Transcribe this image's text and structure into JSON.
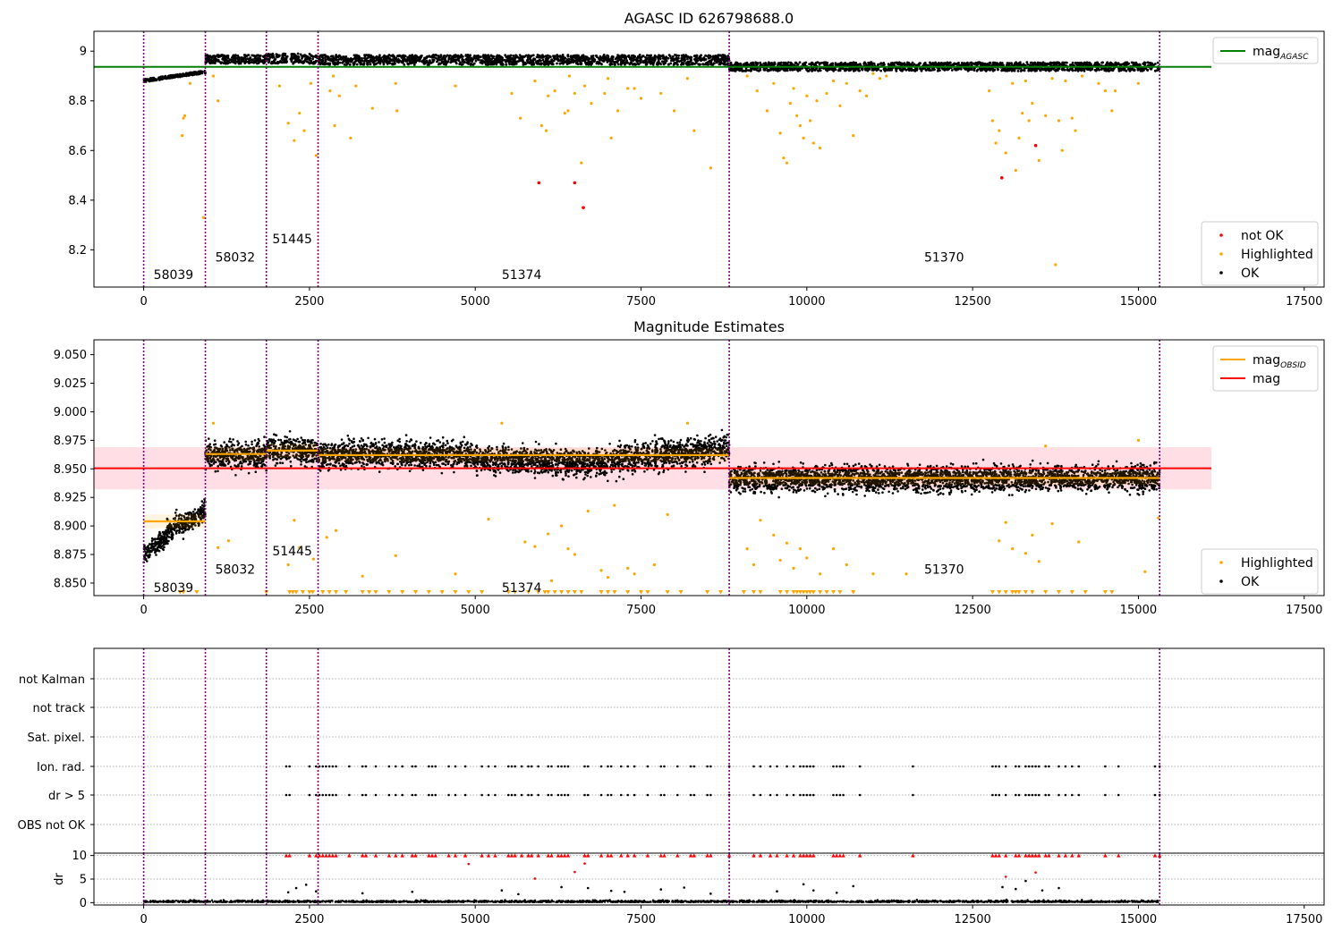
{
  "chart_data": [
    {
      "id": "top",
      "type": "scatter",
      "title": "AGASC ID 626798688.0",
      "xlim": [
        -750,
        17800
      ],
      "ylim": [
        8.05,
        9.08
      ],
      "xticks": [
        0,
        2500,
        5000,
        7500,
        10000,
        12500,
        15000,
        17500
      ],
      "yticks": [
        8.2,
        8.4,
        8.6,
        8.8,
        9.0
      ],
      "obs_boundaries": [
        0,
        930,
        1850,
        2630,
        8830,
        15320
      ],
      "obs_labels": [
        {
          "text": "58039",
          "x": 450,
          "y": 8.1
        },
        {
          "text": "58032",
          "x": 1380,
          "y": 8.17
        },
        {
          "text": "51445",
          "x": 2240,
          "y": 8.245
        },
        {
          "text": "51374",
          "x": 5700,
          "y": 8.1
        },
        {
          "text": "51370",
          "x": 12070,
          "y": 8.17
        }
      ],
      "mag_agasc": {
        "value": 8.937,
        "x_range": [
          -750,
          16100
        ]
      },
      "bands": [
        {
          "x0": 0,
          "x1": 930,
          "y0": 8.875,
          "y1": 8.92
        },
        {
          "x0": 930,
          "x1": 1850,
          "y0": 8.95,
          "y1": 8.985
        },
        {
          "x0": 1850,
          "x1": 2630,
          "y0": 8.95,
          "y1": 8.99
        },
        {
          "x0": 2630,
          "x1": 8830,
          "y0": 8.945,
          "y1": 8.985
        },
        {
          "x0": 8830,
          "x1": 15320,
          "y0": 8.92,
          "y1": 8.955
        }
      ],
      "highlighted": [
        [
          580,
          8.66
        ],
        [
          600,
          8.73
        ],
        [
          620,
          8.74
        ],
        [
          700,
          8.87
        ],
        [
          900,
          8.33
        ],
        [
          1050,
          8.9
        ],
        [
          1120,
          8.8
        ],
        [
          2050,
          8.86
        ],
        [
          2180,
          8.71
        ],
        [
          2270,
          8.64
        ],
        [
          2350,
          8.75
        ],
        [
          2420,
          8.68
        ],
        [
          2520,
          8.87
        ],
        [
          2600,
          8.58
        ],
        [
          2810,
          8.84
        ],
        [
          2860,
          8.9
        ],
        [
          2880,
          8.7
        ],
        [
          2950,
          8.82
        ],
        [
          3120,
          8.65
        ],
        [
          3200,
          8.86
        ],
        [
          3450,
          8.77
        ],
        [
          3800,
          8.87
        ],
        [
          3820,
          8.76
        ],
        [
          4700,
          8.86
        ],
        [
          5550,
          8.83
        ],
        [
          5680,
          8.73
        ],
        [
          5900,
          8.88
        ],
        [
          6000,
          8.7
        ],
        [
          6070,
          8.68
        ],
        [
          6100,
          8.82
        ],
        [
          6200,
          8.84
        ],
        [
          6350,
          8.75
        ],
        [
          6400,
          8.76
        ],
        [
          6420,
          8.9
        ],
        [
          6500,
          8.83
        ],
        [
          6600,
          8.55
        ],
        [
          6650,
          8.86
        ],
        [
          6750,
          8.79
        ],
        [
          6950,
          8.83
        ],
        [
          7000,
          8.89
        ],
        [
          7050,
          8.65
        ],
        [
          7150,
          8.76
        ],
        [
          7300,
          8.85
        ],
        [
          7400,
          8.85
        ],
        [
          7500,
          8.81
        ],
        [
          7800,
          8.83
        ],
        [
          8000,
          8.76
        ],
        [
          8200,
          8.89
        ],
        [
          8300,
          8.68
        ],
        [
          8550,
          8.53
        ],
        [
          9100,
          8.9
        ],
        [
          9250,
          8.84
        ],
        [
          9400,
          8.76
        ],
        [
          9500,
          8.87
        ],
        [
          9600,
          8.67
        ],
        [
          9650,
          8.57
        ],
        [
          9700,
          8.55
        ],
        [
          9750,
          8.79
        ],
        [
          9800,
          8.85
        ],
        [
          9850,
          8.74
        ],
        [
          9900,
          8.7
        ],
        [
          9950,
          8.65
        ],
        [
          10000,
          8.82
        ],
        [
          10050,
          8.72
        ],
        [
          10100,
          8.63
        ],
        [
          10150,
          8.8
        ],
        [
          10200,
          8.61
        ],
        [
          10300,
          8.83
        ],
        [
          10400,
          8.88
        ],
        [
          10500,
          8.78
        ],
        [
          10600,
          8.87
        ],
        [
          10700,
          8.66
        ],
        [
          10800,
          8.84
        ],
        [
          10900,
          8.82
        ],
        [
          11000,
          8.91
        ],
        [
          11100,
          8.89
        ],
        [
          11200,
          8.9
        ],
        [
          12750,
          8.84
        ],
        [
          12800,
          8.72
        ],
        [
          12850,
          8.63
        ],
        [
          12900,
          8.68
        ],
        [
          13000,
          8.59
        ],
        [
          13100,
          8.87
        ],
        [
          13150,
          8.52
        ],
        [
          13200,
          8.65
        ],
        [
          13250,
          8.75
        ],
        [
          13300,
          8.88
        ],
        [
          13350,
          8.72
        ],
        [
          13400,
          8.79
        ],
        [
          13500,
          8.56
        ],
        [
          13600,
          8.74
        ],
        [
          13700,
          8.89
        ],
        [
          13750,
          8.14
        ],
        [
          13800,
          8.72
        ],
        [
          13850,
          8.6
        ],
        [
          13900,
          8.88
        ],
        [
          14000,
          8.73
        ],
        [
          14050,
          8.68
        ],
        [
          14150,
          8.9
        ],
        [
          14400,
          8.87
        ],
        [
          14500,
          8.84
        ],
        [
          14600,
          8.76
        ],
        [
          14650,
          8.84
        ],
        [
          15000,
          8.87
        ]
      ],
      "not_ok": [
        [
          5960,
          8.47
        ],
        [
          6500,
          8.47
        ],
        [
          6630,
          8.37
        ],
        [
          12940,
          8.49
        ],
        [
          13450,
          8.62
        ]
      ],
      "legends": [
        {
          "position": "upper-right",
          "items": [
            {
              "label": "mag",
              "sub": "AGASC",
              "kind": "line",
              "color": "#008000"
            }
          ]
        },
        {
          "position": "lower-right",
          "items": [
            {
              "label": "not OK",
              "kind": "dot",
              "color": "#ff0000"
            },
            {
              "label": "Highlighted",
              "kind": "dot",
              "color": "#ffa500"
            },
            {
              "label": "OK",
              "kind": "dot",
              "color": "#000000"
            }
          ]
        }
      ]
    },
    {
      "id": "middle",
      "type": "scatter",
      "title": "Magnitude Estimates",
      "xlim": [
        -750,
        17800
      ],
      "ylim": [
        8.839,
        9.063
      ],
      "xticks": [
        0,
        2500,
        5000,
        7500,
        10000,
        12500,
        15000,
        17500
      ],
      "yticks": [
        8.85,
        8.875,
        8.9,
        8.925,
        8.95,
        8.975,
        9.0,
        9.025,
        9.05
      ],
      "ytick_labels": [
        "8.850",
        "8.875",
        "8.900",
        "8.925",
        "8.950",
        "8.975",
        "9.000",
        "9.025",
        "9.050"
      ],
      "obs_boundaries": [
        0,
        930,
        1850,
        2630,
        8830,
        15320
      ],
      "obs_labels": [
        {
          "text": "58039",
          "x": 450,
          "y": 8.846
        },
        {
          "text": "58032",
          "x": 1380,
          "y": 8.862
        },
        {
          "text": "51445",
          "x": 2240,
          "y": 8.878
        },
        {
          "text": "51374",
          "x": 5700,
          "y": 8.846
        },
        {
          "text": "51370",
          "x": 12070,
          "y": 8.862
        }
      ],
      "mag": {
        "value": 8.9505,
        "x_range": [
          -750,
          16100
        ],
        "band": [
          8.932,
          8.969
        ]
      },
      "mag_obsid": [
        {
          "x0": 0,
          "x1": 930,
          "y": 8.904
        },
        {
          "x0": 930,
          "x1": 1850,
          "y": 8.963
        },
        {
          "x0": 1850,
          "x1": 2630,
          "y": 8.966
        },
        {
          "x0": 2630,
          "x1": 8830,
          "y": 8.962
        },
        {
          "x0": 8830,
          "x1": 15320,
          "y": 8.942
        }
      ],
      "clouds": [
        {
          "x0": 0,
          "x1": 350,
          "c0": 8.875,
          "c1": 8.89,
          "spread": 0.008
        },
        {
          "x0": 350,
          "x1": 930,
          "c0": 8.895,
          "c1": 8.912,
          "spread": 0.01
        },
        {
          "x0": 930,
          "x1": 1850,
          "c0": 8.962,
          "c1": 8.962,
          "spread": 0.012
        },
        {
          "x0": 1850,
          "x1": 2630,
          "c0": 8.967,
          "c1": 8.965,
          "spread": 0.012
        },
        {
          "x0": 2630,
          "x1": 5000,
          "c0": 8.963,
          "c1": 8.962,
          "spread": 0.012
        },
        {
          "x0": 5000,
          "x1": 7000,
          "c0": 8.958,
          "c1": 8.955,
          "spread": 0.012
        },
        {
          "x0": 7000,
          "x1": 8830,
          "c0": 8.958,
          "c1": 8.968,
          "spread": 0.012
        },
        {
          "x0": 8830,
          "x1": 15320,
          "c0": 8.941,
          "c1": 8.942,
          "spread": 0.011
        }
      ],
      "highlighted": [
        [
          1050,
          8.99
        ],
        [
          1120,
          8.881
        ],
        [
          1280,
          8.887
        ],
        [
          2180,
          8.866
        ],
        [
          2270,
          8.905
        ],
        [
          2350,
          8.881
        ],
        [
          2560,
          8.871
        ],
        [
          2760,
          8.89
        ],
        [
          2900,
          8.896
        ],
        [
          3300,
          8.856
        ],
        [
          3800,
          8.874
        ],
        [
          4700,
          8.858
        ],
        [
          5200,
          8.906
        ],
        [
          5400,
          8.99
        ],
        [
          5750,
          8.886
        ],
        [
          5900,
          8.882
        ],
        [
          6100,
          8.893
        ],
        [
          6150,
          8.852
        ],
        [
          6300,
          8.9
        ],
        [
          6400,
          8.88
        ],
        [
          6500,
          8.875
        ],
        [
          6700,
          8.913
        ],
        [
          6900,
          8.861
        ],
        [
          7000,
          8.855
        ],
        [
          7100,
          8.918
        ],
        [
          7300,
          8.863
        ],
        [
          7400,
          8.858
        ],
        [
          7700,
          8.866
        ],
        [
          7900,
          8.91
        ],
        [
          8200,
          8.99
        ],
        [
          9100,
          8.88
        ],
        [
          9200,
          8.866
        ],
        [
          9300,
          8.905
        ],
        [
          9500,
          8.892
        ],
        [
          9600,
          8.87
        ],
        [
          9700,
          8.885
        ],
        [
          9800,
          8.863
        ],
        [
          9900,
          8.88
        ],
        [
          10000,
          8.872
        ],
        [
          10200,
          8.858
        ],
        [
          10400,
          8.88
        ],
        [
          10600,
          8.866
        ],
        [
          11000,
          8.858
        ],
        [
          11500,
          8.858
        ],
        [
          12900,
          8.887
        ],
        [
          13000,
          8.903
        ],
        [
          13100,
          8.88
        ],
        [
          13300,
          8.876
        ],
        [
          13400,
          8.892
        ],
        [
          13500,
          8.869
        ],
        [
          13600,
          8.97
        ],
        [
          13700,
          8.902
        ],
        [
          14100,
          8.886
        ],
        [
          15000,
          8.975
        ],
        [
          15100,
          8.86
        ],
        [
          15300,
          8.907
        ]
      ],
      "floor_markers": [
        550,
        600,
        800,
        1850,
        2200,
        2250,
        2300,
        2400,
        2500,
        2550,
        2700,
        2800,
        2900,
        3050,
        3300,
        3400,
        3500,
        3700,
        3900,
        4100,
        4300,
        4500,
        4700,
        4900,
        5100,
        5500,
        5600,
        5800,
        5950,
        6050,
        6100,
        6200,
        6300,
        6400,
        6500,
        6600,
        6900,
        7000,
        7100,
        7300,
        7500,
        7600,
        7900,
        8100,
        8500,
        8700,
        9050,
        9200,
        9300,
        9600,
        9700,
        9800,
        9850,
        9900,
        9950,
        10000,
        10050,
        10100,
        10200,
        10300,
        10400,
        10500,
        10700,
        12800,
        12900,
        13000,
        13100,
        13150,
        13200,
        13300,
        13400,
        13600,
        13800,
        14000,
        14200,
        14500,
        14600
      ],
      "legends": [
        {
          "position": "upper-right",
          "items": [
            {
              "label": "mag",
              "sub": "OBSID",
              "kind": "line",
              "color": "#ffa500"
            },
            {
              "label": "mag",
              "kind": "line",
              "color": "#ff0000"
            }
          ]
        },
        {
          "position": "lower-right",
          "items": [
            {
              "label": "Highlighted",
              "kind": "dot",
              "color": "#ffa500"
            },
            {
              "label": "OK",
              "kind": "dot",
              "color": "#000000"
            }
          ]
        }
      ]
    },
    {
      "id": "flags",
      "type": "scatter",
      "xlim": [
        -750,
        17800
      ],
      "rows": [
        "OBS not OK",
        "dr > 5",
        "Ion. rad.",
        "Sat. pixel.",
        "not track",
        "not Kalman"
      ],
      "obs_boundaries": [
        0,
        930,
        1850,
        2630,
        8830,
        15320
      ],
      "flag_x": [
        2150,
        2200,
        2500,
        2600,
        2650,
        2700,
        2750,
        2800,
        2850,
        2900,
        3100,
        3300,
        3350,
        3500,
        3700,
        3800,
        3900,
        4050,
        4100,
        4300,
        4350,
        4400,
        4600,
        4700,
        4850,
        5100,
        5200,
        5300,
        5500,
        5550,
        5600,
        5700,
        5800,
        5850,
        5950,
        6100,
        6150,
        6250,
        6300,
        6350,
        6400,
        6650,
        6700,
        6900,
        7000,
        7050,
        7200,
        7300,
        7400,
        7600,
        7800,
        7850,
        8050,
        8250,
        8300,
        8500,
        8550,
        8830,
        9200,
        9300,
        9450,
        9550,
        9700,
        9800,
        9900,
        9950,
        10000,
        10050,
        10100,
        10400,
        10450,
        10500,
        10550,
        10800,
        11600,
        12800,
        12850,
        12900,
        13000,
        13150,
        13200,
        13300,
        13350,
        13400,
        13450,
        13500,
        13600,
        13650,
        13800,
        13900,
        14000,
        14100,
        14500,
        14700,
        15250,
        15320
      ]
    },
    {
      "id": "dr",
      "type": "scatter",
      "xlim": [
        -750,
        17800
      ],
      "ylim": [
        -0.5,
        10.5
      ],
      "ylabel": "dr",
      "yticks": [
        0,
        5,
        10
      ],
      "xticks": [
        0,
        2500,
        5000,
        7500,
        10000,
        12500,
        15000,
        17500
      ],
      "obs_boundaries": [
        0,
        930,
        1850,
        2630,
        8830,
        15320
      ],
      "high_dr": [
        [
          2180,
          2.2
        ],
        [
          2300,
          3.1
        ],
        [
          2450,
          3.8
        ],
        [
          2600,
          2.4
        ],
        [
          3300,
          2.0
        ],
        [
          4050,
          2.3
        ],
        [
          4900,
          8.2
        ],
        [
          5400,
          2.6
        ],
        [
          5650,
          1.8
        ],
        [
          5900,
          5.1
        ],
        [
          6300,
          3.3
        ],
        [
          6500,
          6.5
        ],
        [
          6650,
          8.3
        ],
        [
          6700,
          3.1
        ],
        [
          7050,
          2.5
        ],
        [
          7250,
          2.3
        ],
        [
          7800,
          2.8
        ],
        [
          8150,
          3.2
        ],
        [
          8550,
          1.9
        ],
        [
          9550,
          2.4
        ],
        [
          9950,
          3.9
        ],
        [
          10100,
          2.6
        ],
        [
          10450,
          2.1
        ],
        [
          10700,
          3.5
        ],
        [
          12950,
          3.3
        ],
        [
          13000,
          5.5
        ],
        [
          13150,
          2.9
        ],
        [
          13300,
          4.6
        ],
        [
          13450,
          6.4
        ],
        [
          13550,
          2.6
        ],
        [
          13800,
          3.1
        ]
      ]
    }
  ]
}
